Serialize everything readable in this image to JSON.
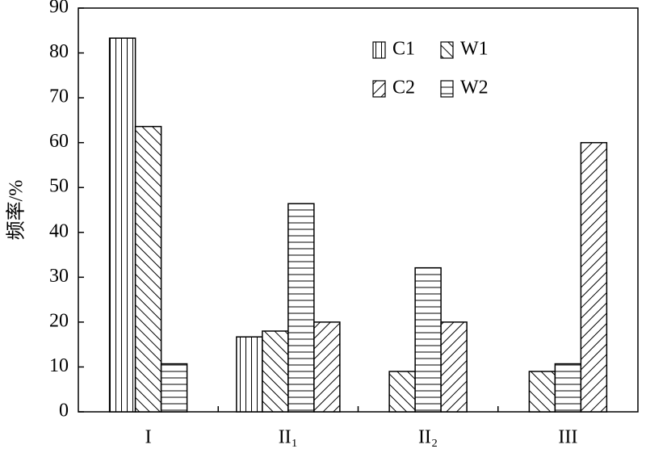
{
  "chart_data": {
    "type": "bar",
    "y_label": "频率/%",
    "categories": [
      "I",
      "II₁",
      "II₂",
      "III"
    ],
    "series": [
      {
        "name": "C1",
        "color": "#000000",
        "values": [
          83.3,
          16.7,
          null,
          null
        ]
      },
      {
        "name": "W1",
        "color": "#000000",
        "values": [
          63.6,
          18,
          9,
          9
        ]
      },
      {
        "name": "C2",
        "color": "#000000",
        "values": [
          null,
          20,
          20,
          60
        ]
      },
      {
        "name": "W2",
        "color": "#000000",
        "values": [
          10.7,
          46.4,
          32.1,
          10.7
        ]
      }
    ],
    "ylim": [
      0,
      90
    ],
    "yticks": [
      0,
      10,
      20,
      30,
      40,
      50,
      60,
      70,
      80,
      90
    ]
  }
}
